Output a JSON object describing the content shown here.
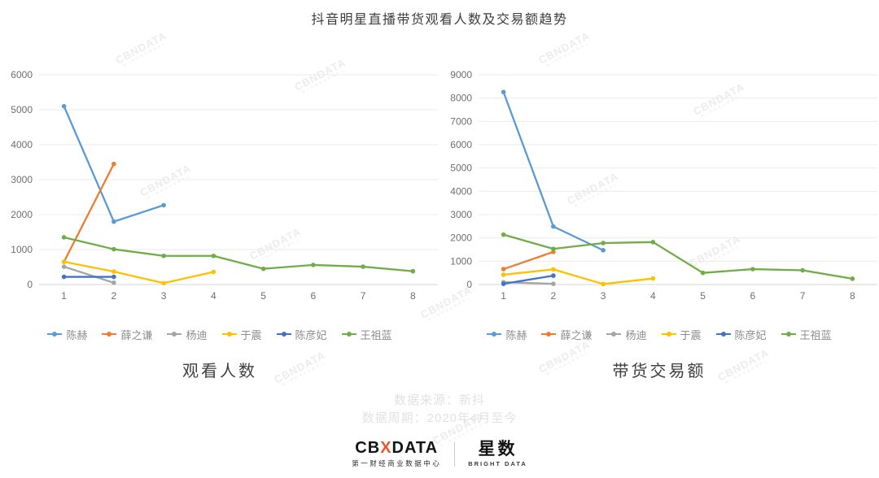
{
  "title": "抖音明星直播带货观看人数及交易额趋势",
  "watermark": {
    "text": "CBNDATA",
    "subtext": "第一财经商业数据中心"
  },
  "chart_data": [
    {
      "type": "line",
      "title": "观看人数",
      "x": [
        "1",
        "2",
        "3",
        "4",
        "5",
        "6",
        "7",
        "8"
      ],
      "ylim": [
        0,
        6000
      ],
      "y_step": 1000,
      "grid": true,
      "legend_position": "bottom",
      "series": [
        {
          "name": "陈赫",
          "color": "#5B9BD5",
          "values": [
            5100,
            1800,
            2270,
            null,
            null,
            null,
            null,
            null
          ]
        },
        {
          "name": "薛之谦",
          "color": "#ED7D31",
          "values": [
            650,
            3450,
            null,
            null,
            null,
            null,
            null,
            null
          ]
        },
        {
          "name": "杨迪",
          "color": "#A5A5A5",
          "values": [
            510,
            50,
            null,
            null,
            null,
            null,
            null,
            null
          ]
        },
        {
          "name": "于震",
          "color": "#FFC000",
          "values": [
            650,
            370,
            40,
            360,
            null,
            null,
            null,
            null
          ]
        },
        {
          "name": "陈彦妃",
          "color": "#4472C4",
          "values": [
            220,
            220,
            null,
            null,
            null,
            null,
            null,
            null
          ]
        },
        {
          "name": "王祖蓝",
          "color": "#70AD47",
          "values": [
            1350,
            1010,
            820,
            820,
            450,
            560,
            510,
            380
          ]
        }
      ]
    },
    {
      "type": "line",
      "title": "带货交易额",
      "x": [
        "1",
        "2",
        "3",
        "4",
        "5",
        "6",
        "7",
        "8"
      ],
      "ylim": [
        0,
        9000
      ],
      "y_step": 1000,
      "grid": true,
      "legend_position": "bottom",
      "series": [
        {
          "name": "陈赫",
          "color": "#5B9BD5",
          "values": [
            8260,
            2490,
            1470,
            null,
            null,
            null,
            null,
            null
          ]
        },
        {
          "name": "薛之谦",
          "color": "#ED7D31",
          "values": [
            660,
            1400,
            null,
            null,
            null,
            null,
            null,
            null
          ]
        },
        {
          "name": "杨迪",
          "color": "#A5A5A5",
          "values": [
            100,
            30,
            null,
            null,
            null,
            null,
            null,
            null
          ]
        },
        {
          "name": "于震",
          "color": "#FFC000",
          "values": [
            420,
            650,
            20,
            260,
            null,
            null,
            null,
            null
          ]
        },
        {
          "name": "陈彦妃",
          "color": "#4472C4",
          "values": [
            30,
            380,
            null,
            null,
            null,
            null,
            null,
            null
          ]
        },
        {
          "name": "王祖蓝",
          "color": "#70AD47",
          "values": [
            2140,
            1530,
            1780,
            1820,
            500,
            660,
            610,
            250
          ]
        }
      ]
    }
  ],
  "footer": {
    "source": "数据来源：新抖",
    "period": "数据周期：2020年4月至今"
  },
  "logos": {
    "cbn": {
      "prefix": "CB",
      "mark": "X",
      "suffix": "DATA",
      "subtitle": "第一财经商业数据中心"
    },
    "star": {
      "name": "星数",
      "subtitle": "BRIGHT DATA"
    }
  }
}
